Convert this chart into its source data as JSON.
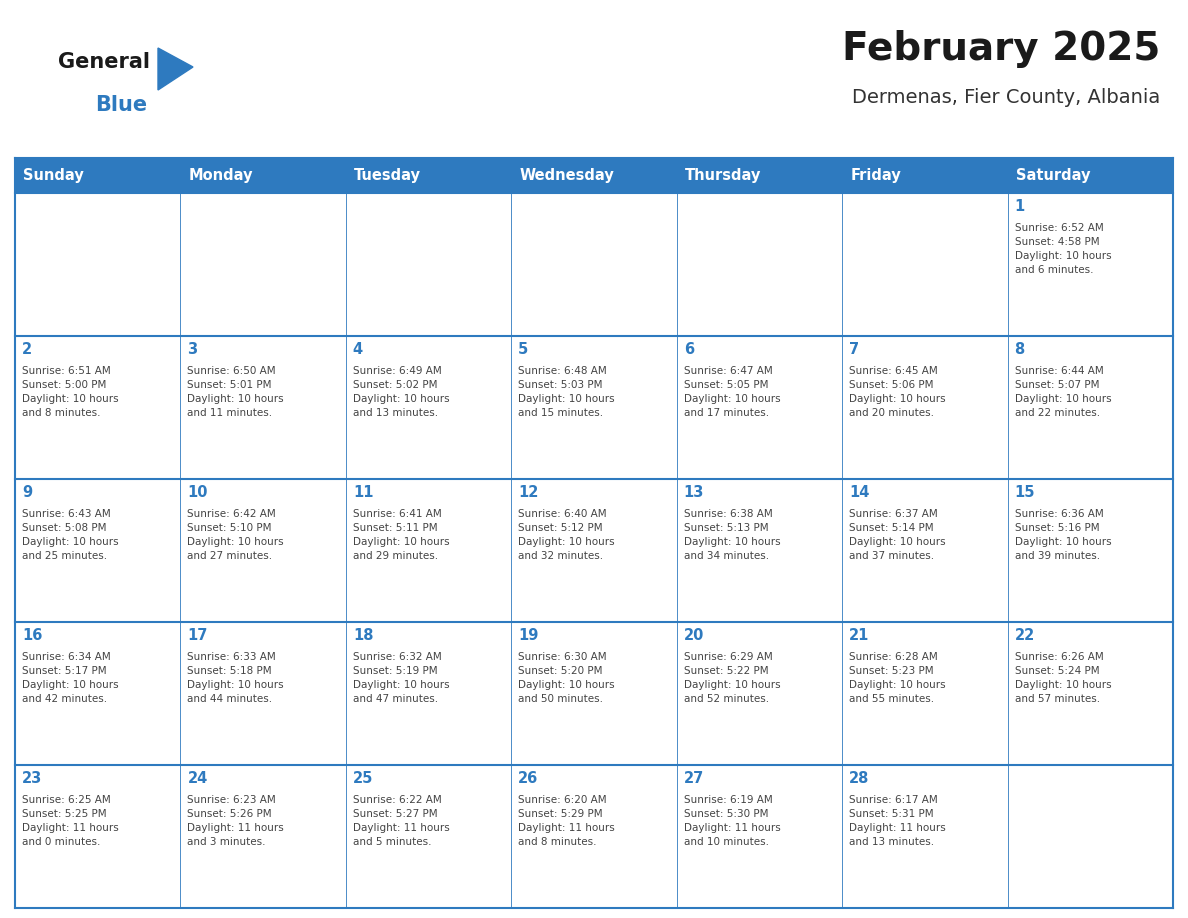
{
  "title": "February 2025",
  "subtitle": "Dermenas, Fier County, Albania",
  "header_bg": "#2E7ABF",
  "header_text_color": "#FFFFFF",
  "cell_bg": "#FFFFFF",
  "row_bg": "#F5F5F5",
  "border_color": "#2E7ABF",
  "thin_border": "#CCCCCC",
  "day_names": [
    "Sunday",
    "Monday",
    "Tuesday",
    "Wednesday",
    "Thursday",
    "Friday",
    "Saturday"
  ],
  "title_color": "#1A1A1A",
  "subtitle_color": "#333333",
  "day_num_color": "#2E7ABF",
  "cell_text_color": "#444444",
  "logo_general_color": "#1A1A1A",
  "logo_blue_color": "#2E7ABF",
  "weeks": [
    [
      {
        "day": null,
        "text": ""
      },
      {
        "day": null,
        "text": ""
      },
      {
        "day": null,
        "text": ""
      },
      {
        "day": null,
        "text": ""
      },
      {
        "day": null,
        "text": ""
      },
      {
        "day": null,
        "text": ""
      },
      {
        "day": 1,
        "text": "Sunrise: 6:52 AM\nSunset: 4:58 PM\nDaylight: 10 hours\nand 6 minutes."
      }
    ],
    [
      {
        "day": 2,
        "text": "Sunrise: 6:51 AM\nSunset: 5:00 PM\nDaylight: 10 hours\nand 8 minutes."
      },
      {
        "day": 3,
        "text": "Sunrise: 6:50 AM\nSunset: 5:01 PM\nDaylight: 10 hours\nand 11 minutes."
      },
      {
        "day": 4,
        "text": "Sunrise: 6:49 AM\nSunset: 5:02 PM\nDaylight: 10 hours\nand 13 minutes."
      },
      {
        "day": 5,
        "text": "Sunrise: 6:48 AM\nSunset: 5:03 PM\nDaylight: 10 hours\nand 15 minutes."
      },
      {
        "day": 6,
        "text": "Sunrise: 6:47 AM\nSunset: 5:05 PM\nDaylight: 10 hours\nand 17 minutes."
      },
      {
        "day": 7,
        "text": "Sunrise: 6:45 AM\nSunset: 5:06 PM\nDaylight: 10 hours\nand 20 minutes."
      },
      {
        "day": 8,
        "text": "Sunrise: 6:44 AM\nSunset: 5:07 PM\nDaylight: 10 hours\nand 22 minutes."
      }
    ],
    [
      {
        "day": 9,
        "text": "Sunrise: 6:43 AM\nSunset: 5:08 PM\nDaylight: 10 hours\nand 25 minutes."
      },
      {
        "day": 10,
        "text": "Sunrise: 6:42 AM\nSunset: 5:10 PM\nDaylight: 10 hours\nand 27 minutes."
      },
      {
        "day": 11,
        "text": "Sunrise: 6:41 AM\nSunset: 5:11 PM\nDaylight: 10 hours\nand 29 minutes."
      },
      {
        "day": 12,
        "text": "Sunrise: 6:40 AM\nSunset: 5:12 PM\nDaylight: 10 hours\nand 32 minutes."
      },
      {
        "day": 13,
        "text": "Sunrise: 6:38 AM\nSunset: 5:13 PM\nDaylight: 10 hours\nand 34 minutes."
      },
      {
        "day": 14,
        "text": "Sunrise: 6:37 AM\nSunset: 5:14 PM\nDaylight: 10 hours\nand 37 minutes."
      },
      {
        "day": 15,
        "text": "Sunrise: 6:36 AM\nSunset: 5:16 PM\nDaylight: 10 hours\nand 39 minutes."
      }
    ],
    [
      {
        "day": 16,
        "text": "Sunrise: 6:34 AM\nSunset: 5:17 PM\nDaylight: 10 hours\nand 42 minutes."
      },
      {
        "day": 17,
        "text": "Sunrise: 6:33 AM\nSunset: 5:18 PM\nDaylight: 10 hours\nand 44 minutes."
      },
      {
        "day": 18,
        "text": "Sunrise: 6:32 AM\nSunset: 5:19 PM\nDaylight: 10 hours\nand 47 minutes."
      },
      {
        "day": 19,
        "text": "Sunrise: 6:30 AM\nSunset: 5:20 PM\nDaylight: 10 hours\nand 50 minutes."
      },
      {
        "day": 20,
        "text": "Sunrise: 6:29 AM\nSunset: 5:22 PM\nDaylight: 10 hours\nand 52 minutes."
      },
      {
        "day": 21,
        "text": "Sunrise: 6:28 AM\nSunset: 5:23 PM\nDaylight: 10 hours\nand 55 minutes."
      },
      {
        "day": 22,
        "text": "Sunrise: 6:26 AM\nSunset: 5:24 PM\nDaylight: 10 hours\nand 57 minutes."
      }
    ],
    [
      {
        "day": 23,
        "text": "Sunrise: 6:25 AM\nSunset: 5:25 PM\nDaylight: 11 hours\nand 0 minutes."
      },
      {
        "day": 24,
        "text": "Sunrise: 6:23 AM\nSunset: 5:26 PM\nDaylight: 11 hours\nand 3 minutes."
      },
      {
        "day": 25,
        "text": "Sunrise: 6:22 AM\nSunset: 5:27 PM\nDaylight: 11 hours\nand 5 minutes."
      },
      {
        "day": 26,
        "text": "Sunrise: 6:20 AM\nSunset: 5:29 PM\nDaylight: 11 hours\nand 8 minutes."
      },
      {
        "day": 27,
        "text": "Sunrise: 6:19 AM\nSunset: 5:30 PM\nDaylight: 11 hours\nand 10 minutes."
      },
      {
        "day": 28,
        "text": "Sunrise: 6:17 AM\nSunset: 5:31 PM\nDaylight: 11 hours\nand 13 minutes."
      },
      {
        "day": null,
        "text": ""
      }
    ]
  ]
}
